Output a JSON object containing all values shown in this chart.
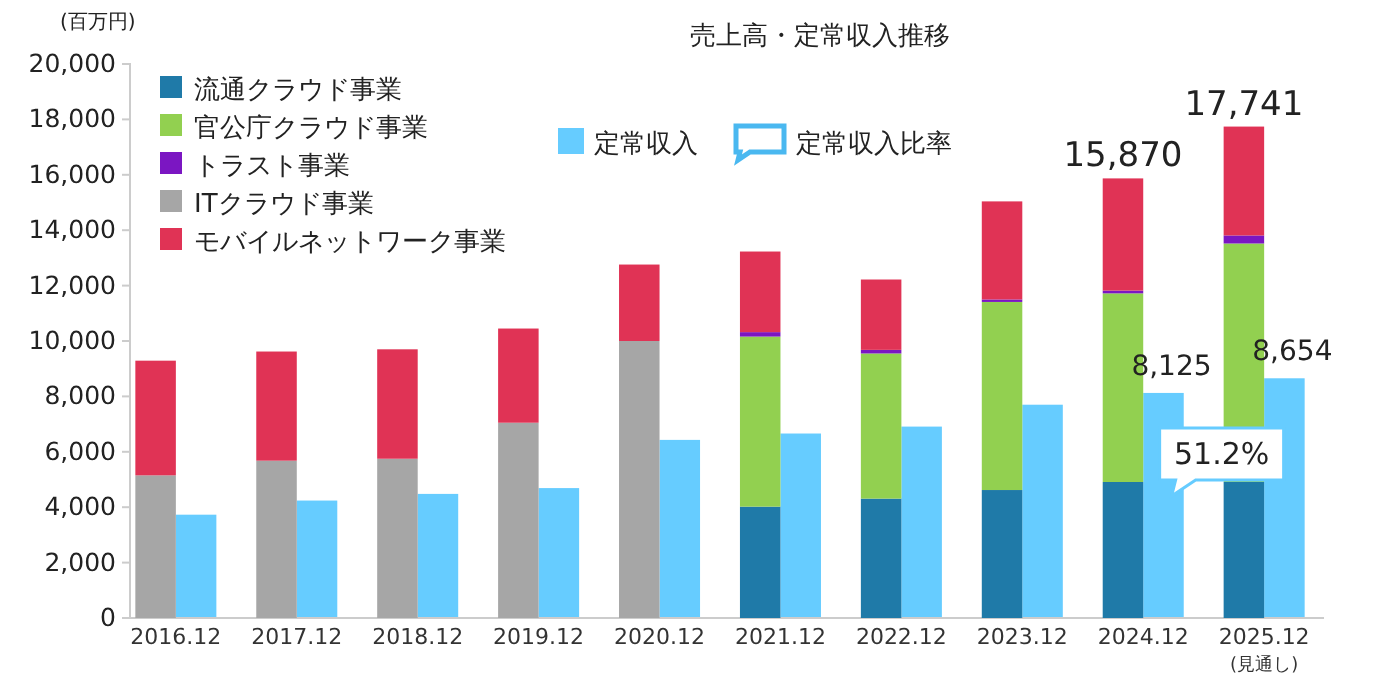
{
  "chart_data": [
    {
      "type": "bar",
      "title": "売上高・定常収入推移",
      "ylabel": "(百万円)",
      "categories": [
        "2016.12",
        "2017.12",
        "2018.12",
        "2019.12",
        "2020.12",
        "2021.12",
        "2022.12",
        "2023.12",
        "2024.12",
        "2025.12$_{(見通し)}$"
      ],
      "stacked": true,
      "series": [
        {
          "name": "流通クラウド事業",
          "color": "#1f7aa8",
          "values": [
            null,
            null,
            null,
            null,
            null,
            4020,
            4310,
            4620,
            4910,
            4910
          ]
        },
        {
          "name": "官公庁クラウド事業",
          "color": "#92d050",
          "values": [
            null,
            null,
            null,
            null,
            null,
            6140,
            5240,
            6790,
            6810,
            8610
          ]
        },
        {
          "name": "トラスト事業",
          "color": "#7b16c2",
          "values": [
            null,
            null,
            null,
            null,
            null,
            160,
            130,
            90,
            100,
            290
          ]
        },
        {
          "name": "ITクラウド事業",
          "color": "#a6a6a6",
          "values": [
            5150,
            5680,
            5750,
            7050,
            10000,
            null,
            null,
            null,
            null,
            null
          ]
        },
        {
          "name": "モバイルネットワーク事業",
          "color": "#e03355",
          "values": [
            4140,
            3940,
            3950,
            3400,
            2760,
            2910,
            2540,
            3540,
            4050,
            3931
          ]
        }
      ],
      "totals": [
        null,
        null,
        null,
        null,
        null,
        null,
        null,
        null,
        "15,870",
        "17,741"
      ],
      "annotations": [
        "51.2%",
        "定常収入比率"
      ],
      "ylim": [
        0,
        20000
      ],
      "yticks": [
        {
          "value": 0,
          "label": "0"
        },
        {
          "value": 2000,
          "label": "2,000"
        },
        {
          "value": 4000,
          "label": "4,000"
        },
        {
          "value": 6000,
          "label": "6,000"
        },
        {
          "value": 8000,
          "label": "8,000"
        },
        {
          "value": 10000,
          "label": "10,000"
        },
        {
          "value": 12000,
          "label": "12,000"
        },
        {
          "value": 14000,
          "label": "14,000"
        },
        {
          "value": 16000,
          "label": "16,000"
        },
        {
          "value": 18000,
          "label": "18,000"
        },
        {
          "value": 20000,
          "label": "20,000"
        }
      ],
      "grid": false,
      "legend": "top left"
    },
    {
      "type": "bar",
      "series": [
        {
          "name": "定常収入",
          "color": "#66ccff",
          "values": [
            3730,
            4240,
            4480,
            4690,
            6430,
            6660,
            6910,
            7700,
            8125,
            8654
          ],
          "value_labels": [
            null,
            null,
            null,
            null,
            null,
            null,
            null,
            null,
            "8,125",
            "8,654"
          ]
        }
      ],
      "ylim": [
        0,
        20000
      ],
      "legend": "top"
    }
  ]
}
